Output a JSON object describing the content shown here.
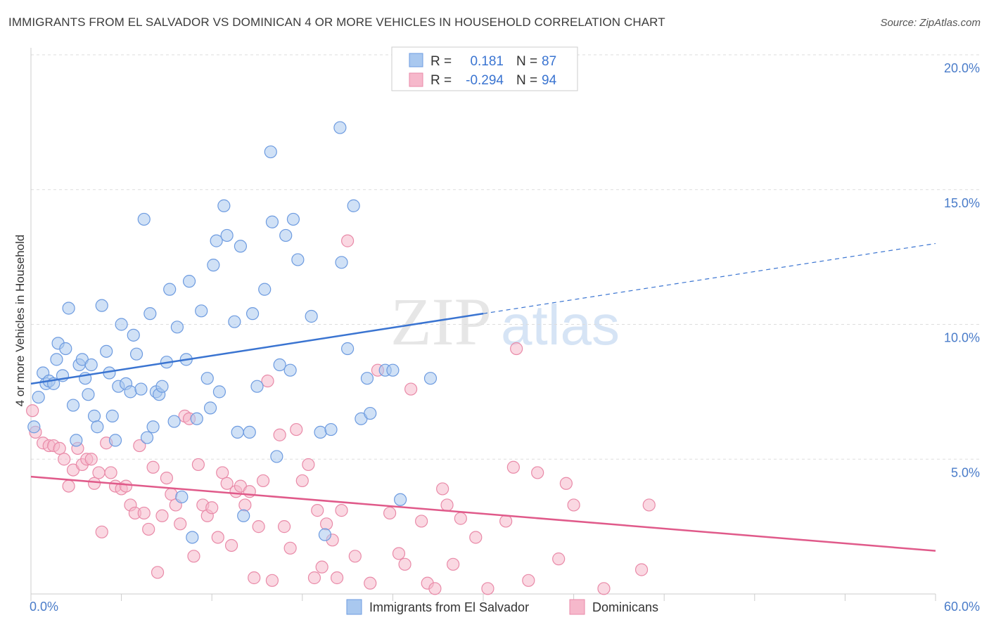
{
  "title": "IMMIGRANTS FROM EL SALVADOR VS DOMINICAN 4 OR MORE VEHICLES IN HOUSEHOLD CORRELATION CHART",
  "source": "Source: ZipAtlas.com",
  "watermark": {
    "zip": "ZIP",
    "atlas": "atlas"
  },
  "colors": {
    "blue_fill": "#a9c8ef",
    "blue_stroke": "#6d9be0",
    "blue_line": "#3a74d1",
    "pink_fill": "#f6b8cb",
    "pink_stroke": "#e98aa8",
    "pink_line": "#e05a8a",
    "grid": "#dddddd",
    "tick_text": "#4a7cc9"
  },
  "legend": {
    "rows": [
      {
        "r_label": "R =",
        "r_value": "0.181",
        "n_label": "N =",
        "n_value": "87"
      },
      {
        "r_label": "R =",
        "r_value": "-0.294",
        "n_label": "N =",
        "n_value": "94"
      }
    ]
  },
  "chart_data": {
    "type": "scatter",
    "title": "IMMIGRANTS FROM EL SALVADOR VS DOMINICAN 4 OR MORE VEHICLES IN HOUSEHOLD CORRELATION CHART",
    "xlabel": "",
    "ylabel": "4 or more Vehicles in Household",
    "xlim": [
      0,
      60
    ],
    "ylim": [
      0,
      20
    ],
    "x_tick_labels": [
      "0.0%",
      "60.0%"
    ],
    "y_ticks": [
      5,
      10,
      15,
      20
    ],
    "y_tick_labels": [
      "5.0%",
      "10.0%",
      "15.0%",
      "20.0%"
    ],
    "grid": true,
    "legend_position": "top-center",
    "series": [
      {
        "name": "Immigrants from El Salvador",
        "color": "#a9c8ef",
        "trend": {
          "x0": 0,
          "y0": 7.8,
          "x1": 30,
          "y1": 10.4,
          "dash_to_x": 60,
          "dash_to_y": 13.0
        },
        "points": [
          [
            0.2,
            6.2
          ],
          [
            0.5,
            7.3
          ],
          [
            0.8,
            8.2
          ],
          [
            1.0,
            7.8
          ],
          [
            1.2,
            7.9
          ],
          [
            1.5,
            7.8
          ],
          [
            1.7,
            8.7
          ],
          [
            1.8,
            9.3
          ],
          [
            2.1,
            8.1
          ],
          [
            2.3,
            9.1
          ],
          [
            2.5,
            10.6
          ],
          [
            2.8,
            7.0
          ],
          [
            3.0,
            5.7
          ],
          [
            3.2,
            8.5
          ],
          [
            3.4,
            8.7
          ],
          [
            3.6,
            8.0
          ],
          [
            3.8,
            7.4
          ],
          [
            4.0,
            8.5
          ],
          [
            4.2,
            6.6
          ],
          [
            4.4,
            6.2
          ],
          [
            4.7,
            10.7
          ],
          [
            5.0,
            9.0
          ],
          [
            5.2,
            8.2
          ],
          [
            5.4,
            6.6
          ],
          [
            5.6,
            5.7
          ],
          [
            5.8,
            7.7
          ],
          [
            6.0,
            10.0
          ],
          [
            6.3,
            7.8
          ],
          [
            6.6,
            7.5
          ],
          [
            6.8,
            9.6
          ],
          [
            7.0,
            8.9
          ],
          [
            7.3,
            7.6
          ],
          [
            7.5,
            13.9
          ],
          [
            7.7,
            5.8
          ],
          [
            7.9,
            10.4
          ],
          [
            8.1,
            6.2
          ],
          [
            8.3,
            7.5
          ],
          [
            8.5,
            7.4
          ],
          [
            8.7,
            7.7
          ],
          [
            9.0,
            8.6
          ],
          [
            9.2,
            11.3
          ],
          [
            9.5,
            6.4
          ],
          [
            9.7,
            9.9
          ],
          [
            10.0,
            3.6
          ],
          [
            10.3,
            8.7
          ],
          [
            10.5,
            11.6
          ],
          [
            10.7,
            2.1
          ],
          [
            11.0,
            6.5
          ],
          [
            11.3,
            10.5
          ],
          [
            11.7,
            8.0
          ],
          [
            11.9,
            6.9
          ],
          [
            12.1,
            12.2
          ],
          [
            12.3,
            13.1
          ],
          [
            12.5,
            7.5
          ],
          [
            12.8,
            14.4
          ],
          [
            13.0,
            13.3
          ],
          [
            13.5,
            10.1
          ],
          [
            13.7,
            6.0
          ],
          [
            13.9,
            12.9
          ],
          [
            14.1,
            2.9
          ],
          [
            14.5,
            6.0
          ],
          [
            14.7,
            10.4
          ],
          [
            15.0,
            7.7
          ],
          [
            15.5,
            11.3
          ],
          [
            15.9,
            16.4
          ],
          [
            16.0,
            13.8
          ],
          [
            16.3,
            5.1
          ],
          [
            16.5,
            8.5
          ],
          [
            16.9,
            13.3
          ],
          [
            17.2,
            8.3
          ],
          [
            17.4,
            13.9
          ],
          [
            17.7,
            12.4
          ],
          [
            18.6,
            10.3
          ],
          [
            19.2,
            6.0
          ],
          [
            19.5,
            2.2
          ],
          [
            19.9,
            6.1
          ],
          [
            20.5,
            17.3
          ],
          [
            20.6,
            12.3
          ],
          [
            21.0,
            9.1
          ],
          [
            21.4,
            14.4
          ],
          [
            21.9,
            6.5
          ],
          [
            22.3,
            8.0
          ],
          [
            22.5,
            6.7
          ],
          [
            23.5,
            8.3
          ],
          [
            24.0,
            8.3
          ],
          [
            24.5,
            3.5
          ],
          [
            26.5,
            8.0
          ]
        ]
      },
      {
        "name": "Dominicans",
        "color": "#f6b8cb",
        "trend": {
          "x0": 0,
          "y0": 4.35,
          "x1": 60,
          "y1": 1.6
        },
        "points": [
          [
            0.1,
            6.8
          ],
          [
            0.3,
            6.0
          ],
          [
            0.8,
            5.6
          ],
          [
            1.2,
            5.5
          ],
          [
            1.5,
            5.5
          ],
          [
            1.9,
            5.4
          ],
          [
            2.2,
            5.0
          ],
          [
            2.5,
            4.0
          ],
          [
            2.8,
            4.6
          ],
          [
            3.1,
            5.4
          ],
          [
            3.4,
            4.8
          ],
          [
            3.7,
            5.0
          ],
          [
            4.0,
            5.0
          ],
          [
            4.2,
            4.1
          ],
          [
            4.5,
            4.5
          ],
          [
            4.7,
            2.3
          ],
          [
            5.0,
            5.6
          ],
          [
            5.3,
            4.5
          ],
          [
            5.6,
            4.0
          ],
          [
            6.0,
            3.9
          ],
          [
            6.3,
            4.0
          ],
          [
            6.6,
            3.3
          ],
          [
            6.9,
            3.0
          ],
          [
            7.2,
            5.5
          ],
          [
            7.5,
            3.0
          ],
          [
            7.8,
            2.4
          ],
          [
            8.1,
            4.7
          ],
          [
            8.4,
            0.8
          ],
          [
            8.7,
            2.9
          ],
          [
            9.0,
            4.3
          ],
          [
            9.3,
            3.7
          ],
          [
            9.6,
            3.3
          ],
          [
            9.9,
            2.6
          ],
          [
            10.2,
            6.6
          ],
          [
            10.5,
            6.5
          ],
          [
            10.8,
            1.4
          ],
          [
            11.1,
            4.8
          ],
          [
            11.4,
            3.3
          ],
          [
            11.7,
            2.9
          ],
          [
            12.0,
            3.2
          ],
          [
            12.4,
            2.1
          ],
          [
            12.7,
            4.5
          ],
          [
            13.0,
            4.1
          ],
          [
            13.3,
            1.8
          ],
          [
            13.6,
            3.8
          ],
          [
            13.9,
            4.0
          ],
          [
            14.2,
            3.3
          ],
          [
            14.5,
            3.8
          ],
          [
            14.8,
            0.6
          ],
          [
            15.1,
            2.5
          ],
          [
            15.4,
            4.2
          ],
          [
            15.7,
            7.9
          ],
          [
            16.0,
            0.5
          ],
          [
            16.5,
            5.9
          ],
          [
            16.8,
            2.5
          ],
          [
            17.2,
            1.7
          ],
          [
            17.6,
            6.1
          ],
          [
            18.0,
            4.2
          ],
          [
            18.4,
            4.8
          ],
          [
            18.8,
            0.6
          ],
          [
            19.0,
            3.1
          ],
          [
            19.3,
            1.0
          ],
          [
            19.6,
            2.6
          ],
          [
            20.0,
            2.0
          ],
          [
            20.3,
            0.6
          ],
          [
            20.6,
            3.1
          ],
          [
            21.0,
            13.1
          ],
          [
            21.5,
            1.4
          ],
          [
            22.5,
            0.4
          ],
          [
            23.0,
            8.3
          ],
          [
            23.8,
            3.0
          ],
          [
            24.4,
            1.5
          ],
          [
            24.8,
            1.1
          ],
          [
            25.2,
            7.6
          ],
          [
            25.9,
            2.7
          ],
          [
            26.3,
            0.4
          ],
          [
            26.8,
            0.2
          ],
          [
            27.3,
            3.9
          ],
          [
            27.6,
            3.3
          ],
          [
            28.0,
            1.1
          ],
          [
            28.5,
            2.8
          ],
          [
            29.5,
            2.1
          ],
          [
            30.3,
            0.2
          ],
          [
            31.5,
            2.7
          ],
          [
            32.0,
            4.7
          ],
          [
            32.2,
            9.1
          ],
          [
            33.0,
            0.5
          ],
          [
            33.6,
            4.5
          ],
          [
            35.0,
            1.3
          ],
          [
            35.5,
            4.1
          ],
          [
            36.0,
            3.3
          ],
          [
            38.0,
            0.2
          ],
          [
            40.5,
            0.9
          ],
          [
            41.0,
            3.3
          ]
        ]
      }
    ]
  }
}
